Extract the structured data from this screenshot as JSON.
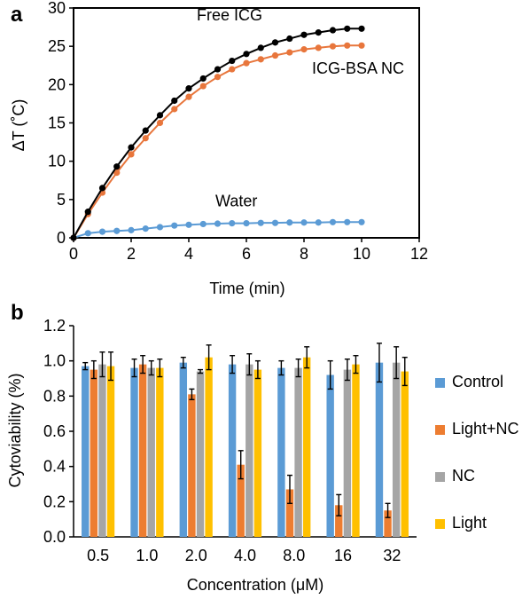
{
  "panels": {
    "a": {
      "label": "a"
    },
    "b": {
      "label": "b"
    }
  },
  "chart_data": [
    {
      "type": "line",
      "panel": "a",
      "xlabel": "Time (min)",
      "ylabel": "ΔT (˚C)",
      "xlim": [
        0,
        12
      ],
      "ylim": [
        0,
        30
      ],
      "xticks": [
        0,
        2,
        4,
        6,
        8,
        10,
        12
      ],
      "yticks": [
        0,
        5,
        10,
        15,
        20,
        25,
        30
      ],
      "grid": false,
      "series": [
        {
          "name": "Free ICG",
          "color": "#000000",
          "x": [
            0,
            0.5,
            1,
            1.5,
            2,
            2.5,
            3,
            3.5,
            4,
            4.5,
            5,
            5.5,
            6,
            6.5,
            7,
            7.5,
            8,
            8.5,
            9,
            9.5,
            10
          ],
          "y": [
            0,
            3.4,
            6.5,
            9.3,
            11.8,
            14,
            16,
            17.9,
            19.5,
            20.8,
            22,
            23.1,
            24,
            24.8,
            25.5,
            26,
            26.5,
            26.8,
            27.1,
            27.3,
            27.3
          ]
        },
        {
          "name": "ICG-BSA NC",
          "color": "#E8763C",
          "x": [
            0,
            0.5,
            1,
            1.5,
            2,
            2.5,
            3,
            3.5,
            4,
            4.5,
            5,
            5.5,
            6,
            6.5,
            7,
            7.5,
            8,
            8.5,
            9,
            9.5,
            10
          ],
          "y": [
            0,
            3.1,
            5.9,
            8.5,
            10.9,
            13,
            15,
            16.8,
            18.4,
            19.8,
            21,
            22,
            22.8,
            23.3,
            23.8,
            24.2,
            24.6,
            24.8,
            25,
            25.1,
            25.1
          ]
        },
        {
          "name": "Water",
          "color": "#5B9BD5",
          "x": [
            0,
            0.5,
            1,
            1.5,
            2,
            2.5,
            3,
            3.5,
            4,
            4.5,
            5,
            5.5,
            6,
            6.5,
            7,
            7.5,
            8,
            8.5,
            9,
            9.5,
            10
          ],
          "y": [
            0,
            0.6,
            0.8,
            0.9,
            1.0,
            1.2,
            1.4,
            1.6,
            1.7,
            1.8,
            1.85,
            1.9,
            1.9,
            1.95,
            1.95,
            2.0,
            2.0,
            2.0,
            2.05,
            2.05,
            2.05
          ]
        }
      ]
    },
    {
      "type": "bar",
      "panel": "b",
      "xlabel": "Concentration (μM)",
      "ylabel": "Cytoviability (%)",
      "ylim": [
        0,
        1.2
      ],
      "yticks": [
        "0.0",
        "0.2",
        "0.4",
        "0.6",
        "0.8",
        "1.0",
        "1.2"
      ],
      "grid": false,
      "legend_position": "right",
      "categories": [
        "0.5",
        "1.0",
        "2.0",
        "4.0",
        "8.0",
        "16",
        "32"
      ],
      "series": [
        {
          "name": "Control",
          "color": "#5B9BD5",
          "values": [
            0.97,
            0.96,
            0.99,
            0.98,
            0.96,
            0.92,
            0.99
          ],
          "errors": [
            0.02,
            0.05,
            0.03,
            0.05,
            0.04,
            0.08,
            0.11
          ]
        },
        {
          "name": "Light+NC",
          "color": "#ED7D31",
          "values": [
            0.95,
            0.98,
            0.81,
            0.41,
            0.27,
            0.18,
            0.15
          ],
          "errors": [
            0.05,
            0.05,
            0.03,
            0.08,
            0.08,
            0.06,
            0.04
          ]
        },
        {
          "name": "NC",
          "color": "#A5A5A5",
          "values": [
            0.98,
            0.96,
            0.94,
            0.98,
            0.96,
            0.95,
            0.99
          ],
          "errors": [
            0.07,
            0.04,
            0.01,
            0.06,
            0.05,
            0.06,
            0.09
          ]
        },
        {
          "name": "Light",
          "color": "#FFC000",
          "values": [
            0.97,
            0.96,
            1.02,
            0.95,
            1.02,
            0.98,
            0.94
          ],
          "errors": [
            0.08,
            0.05,
            0.07,
            0.05,
            0.06,
            0.05,
            0.08
          ]
        }
      ]
    }
  ]
}
